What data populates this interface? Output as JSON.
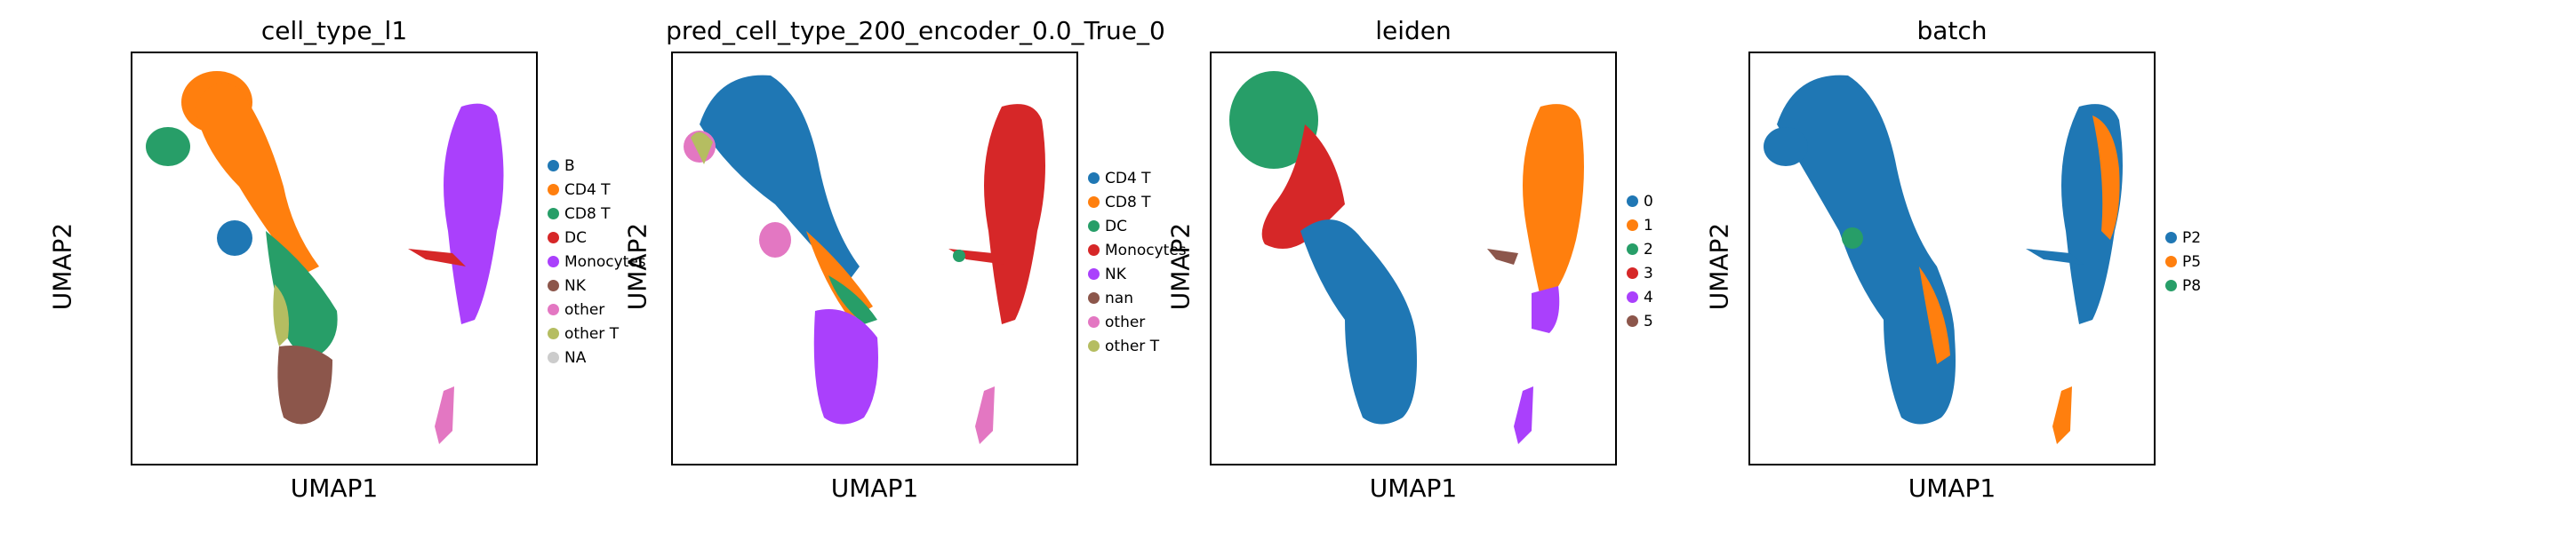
{
  "chart_data": [
    {
      "type": "scatter",
      "title": "cell_type_l1",
      "xlabel": "UMAP1",
      "ylabel": "UMAP2",
      "legend": [
        "B",
        "CD4 T",
        "CD8 T",
        "DC",
        "Monocytes",
        "NK",
        "other",
        "other T",
        "NA"
      ],
      "colors": [
        "#1f77b4",
        "#ff7f0e",
        "#279e68",
        "#d62728",
        "#aa40fc",
        "#8c564b",
        "#e377c2",
        "#b5bd61",
        "#cccccc"
      ],
      "grid": false,
      "legend_position": "right"
    },
    {
      "type": "scatter",
      "title": "pred_cell_type_200_encoder_0.0_True_0",
      "xlabel": "UMAP1",
      "ylabel": "UMAP2",
      "legend": [
        "CD4 T",
        "CD8 T",
        "DC",
        "Monocytes",
        "NK",
        "nan",
        "other",
        "other T"
      ],
      "colors": [
        "#1f77b4",
        "#ff7f0e",
        "#279e68",
        "#d62728",
        "#aa40fc",
        "#8c564b",
        "#e377c2",
        "#b5bd61"
      ],
      "grid": false,
      "legend_position": "right"
    },
    {
      "type": "scatter",
      "title": "leiden",
      "xlabel": "UMAP1",
      "ylabel": "UMAP2",
      "legend": [
        "0",
        "1",
        "2",
        "3",
        "4",
        "5"
      ],
      "colors": [
        "#1f77b4",
        "#ff7f0e",
        "#279e68",
        "#d62728",
        "#aa40fc",
        "#8c564b"
      ],
      "grid": false,
      "legend_position": "right"
    },
    {
      "type": "scatter",
      "title": "batch",
      "xlabel": "UMAP1",
      "ylabel": "UMAP2",
      "legend": [
        "P2",
        "P5",
        "P8"
      ],
      "colors": [
        "#1f77b4",
        "#ff7f0e",
        "#279e68"
      ],
      "grid": false,
      "legend_position": "right"
    }
  ]
}
